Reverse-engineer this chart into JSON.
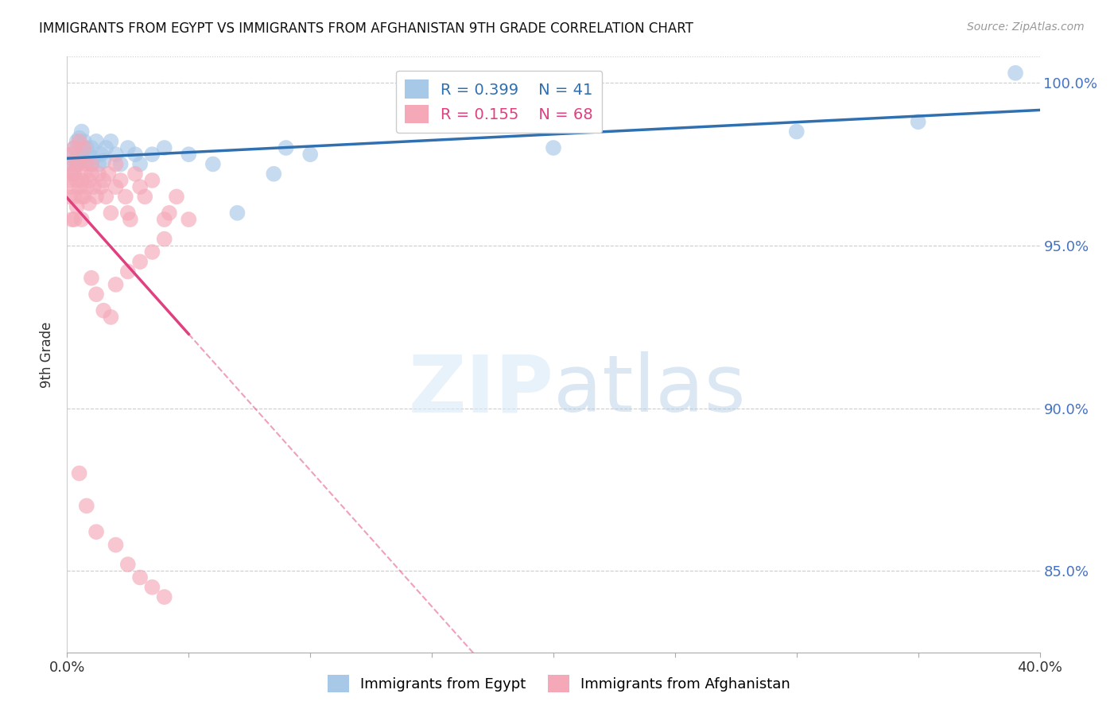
{
  "title": "IMMIGRANTS FROM EGYPT VS IMMIGRANTS FROM AFGHANISTAN 9TH GRADE CORRELATION CHART",
  "source": "Source: ZipAtlas.com",
  "ylabel": "9th Grade",
  "xlim": [
    0.0,
    0.4
  ],
  "ylim": [
    0.825,
    1.008
  ],
  "yticks": [
    0.85,
    0.9,
    0.95,
    1.0
  ],
  "xticks": [
    0.0,
    0.05,
    0.1,
    0.15,
    0.2,
    0.25,
    0.3,
    0.35,
    0.4
  ],
  "legend_blue_R": "0.399",
  "legend_blue_N": "41",
  "legend_pink_R": "0.155",
  "legend_pink_N": "68",
  "blue_color": "#a8c8e8",
  "pink_color": "#f4a8b8",
  "trend_blue_color": "#3070b0",
  "trend_pink_color": "#e04080",
  "background_color": "#ffffff",
  "egypt_x": [
    0.001,
    0.002,
    0.002,
    0.003,
    0.003,
    0.004,
    0.004,
    0.005,
    0.005,
    0.006,
    0.006,
    0.007,
    0.007,
    0.008,
    0.009,
    0.01,
    0.01,
    0.011,
    0.012,
    0.013,
    0.014,
    0.015,
    0.016,
    0.018,
    0.02,
    0.022,
    0.025,
    0.028,
    0.03,
    0.035,
    0.04,
    0.05,
    0.06,
    0.07,
    0.085,
    0.09,
    0.1,
    0.2,
    0.3,
    0.35,
    0.39
  ],
  "egypt_y": [
    0.975,
    0.978,
    0.972,
    0.98,
    0.976,
    0.982,
    0.975,
    0.983,
    0.977,
    0.985,
    0.978,
    0.976,
    0.982,
    0.98,
    0.978,
    0.975,
    0.98,
    0.977,
    0.982,
    0.975,
    0.978,
    0.976,
    0.98,
    0.982,
    0.978,
    0.975,
    0.98,
    0.978,
    0.975,
    0.978,
    0.98,
    0.978,
    0.975,
    0.96,
    0.972,
    0.98,
    0.978,
    0.98,
    0.985,
    0.988,
    1.003
  ],
  "afghanistan_x": [
    0.001,
    0.001,
    0.001,
    0.002,
    0.002,
    0.002,
    0.002,
    0.003,
    0.003,
    0.003,
    0.003,
    0.004,
    0.004,
    0.004,
    0.005,
    0.005,
    0.005,
    0.006,
    0.006,
    0.006,
    0.007,
    0.007,
    0.007,
    0.008,
    0.008,
    0.009,
    0.009,
    0.01,
    0.01,
    0.011,
    0.012,
    0.013,
    0.014,
    0.015,
    0.016,
    0.017,
    0.018,
    0.02,
    0.02,
    0.022,
    0.024,
    0.025,
    0.026,
    0.028,
    0.03,
    0.032,
    0.035,
    0.04,
    0.042,
    0.045,
    0.01,
    0.012,
    0.015,
    0.018,
    0.02,
    0.025,
    0.03,
    0.035,
    0.04,
    0.05,
    0.005,
    0.008,
    0.012,
    0.02,
    0.025,
    0.03,
    0.035,
    0.04
  ],
  "afghanistan_y": [
    0.97,
    0.975,
    0.965,
    0.972,
    0.958,
    0.968,
    0.978,
    0.965,
    0.972,
    0.958,
    0.98,
    0.97,
    0.962,
    0.975,
    0.968,
    0.975,
    0.982,
    0.97,
    0.965,
    0.958,
    0.972,
    0.98,
    0.965,
    0.975,
    0.968,
    0.97,
    0.963,
    0.972,
    0.975,
    0.968,
    0.965,
    0.972,
    0.968,
    0.97,
    0.965,
    0.972,
    0.96,
    0.968,
    0.975,
    0.97,
    0.965,
    0.96,
    0.958,
    0.972,
    0.968,
    0.965,
    0.97,
    0.958,
    0.96,
    0.965,
    0.94,
    0.935,
    0.93,
    0.928,
    0.938,
    0.942,
    0.945,
    0.948,
    0.952,
    0.958,
    0.88,
    0.87,
    0.862,
    0.858,
    0.852,
    0.848,
    0.845,
    0.842
  ]
}
